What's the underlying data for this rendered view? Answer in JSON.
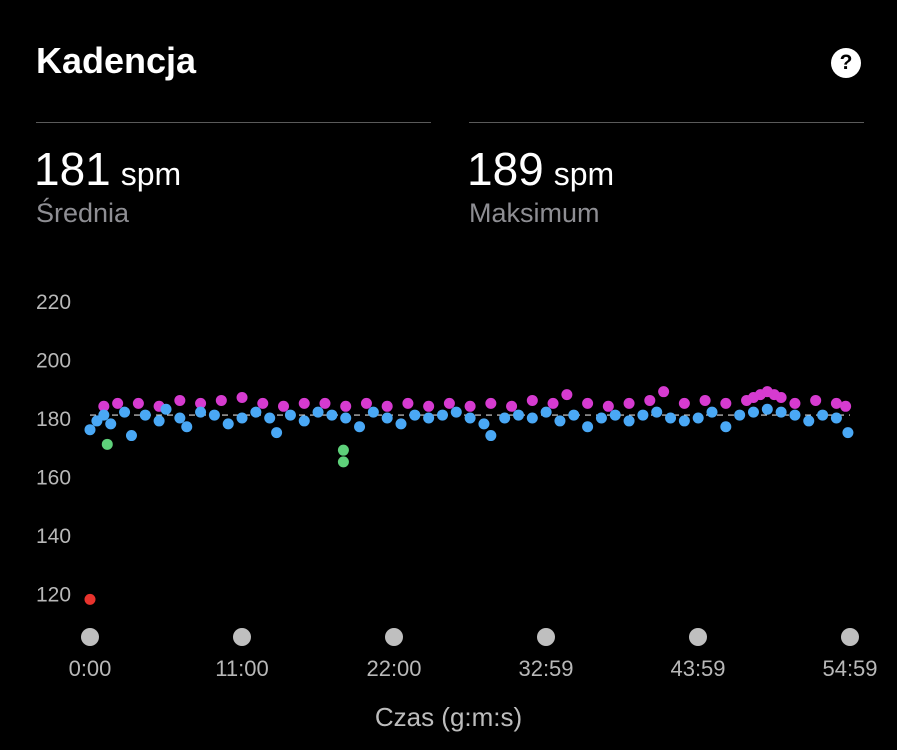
{
  "header": {
    "title": "Kadencja",
    "help_icon": "question-circle-icon"
  },
  "stats": [
    {
      "value": "181",
      "unit": "spm",
      "label": "Średnia"
    },
    {
      "value": "189",
      "unit": "spm",
      "label": "Maksimum"
    }
  ],
  "colors": {
    "background": "#000000",
    "above_avg": "#d63bd0",
    "average": "#4aa8f5",
    "below_avg": "#5ed17a",
    "low": "#e8332d",
    "grid_text": "#b8b8b8",
    "marker": "#bfbfbf"
  },
  "chart_data": {
    "type": "scatter",
    "xlabel": "Czas (g:m:s)",
    "ylabel": "",
    "x_ticks": [
      "0:00",
      "11:00",
      "22:00",
      "32:59",
      "43:59",
      "54:59"
    ],
    "x_range": [
      0,
      3299
    ],
    "y_ticks": [
      120,
      140,
      160,
      180,
      200,
      220
    ],
    "ylim": [
      110,
      225
    ],
    "average_line": 181,
    "series": [
      {
        "color_key": "above_avg",
        "points": [
          [
            60,
            184
          ],
          [
            120,
            185
          ],
          [
            210,
            185
          ],
          [
            300,
            184
          ],
          [
            390,
            186
          ],
          [
            480,
            185
          ],
          [
            570,
            186
          ],
          [
            660,
            187
          ],
          [
            750,
            185
          ],
          [
            840,
            184
          ],
          [
            930,
            185
          ],
          [
            1020,
            185
          ],
          [
            1110,
            184
          ],
          [
            1200,
            185
          ],
          [
            1290,
            184
          ],
          [
            1380,
            185
          ],
          [
            1470,
            184
          ],
          [
            1560,
            185
          ],
          [
            1650,
            184
          ],
          [
            1740,
            185
          ],
          [
            1830,
            184
          ],
          [
            1920,
            186
          ],
          [
            2010,
            185
          ],
          [
            2070,
            188
          ],
          [
            2160,
            185
          ],
          [
            2250,
            184
          ],
          [
            2340,
            185
          ],
          [
            2430,
            186
          ],
          [
            2490,
            189
          ],
          [
            2580,
            185
          ],
          [
            2670,
            186
          ],
          [
            2760,
            185
          ],
          [
            2850,
            186
          ],
          [
            2880,
            187
          ],
          [
            2910,
            188
          ],
          [
            2940,
            189
          ],
          [
            2970,
            188
          ],
          [
            3000,
            187
          ],
          [
            3060,
            185
          ],
          [
            3150,
            186
          ],
          [
            3240,
            185
          ],
          [
            3280,
            184
          ]
        ]
      },
      {
        "color_key": "average",
        "points": [
          [
            0,
            176
          ],
          [
            30,
            179
          ],
          [
            60,
            181
          ],
          [
            90,
            178
          ],
          [
            150,
            182
          ],
          [
            180,
            174
          ],
          [
            240,
            181
          ],
          [
            300,
            179
          ],
          [
            330,
            183
          ],
          [
            390,
            180
          ],
          [
            420,
            177
          ],
          [
            480,
            182
          ],
          [
            540,
            181
          ],
          [
            600,
            178
          ],
          [
            660,
            180
          ],
          [
            720,
            182
          ],
          [
            780,
            180
          ],
          [
            810,
            175
          ],
          [
            870,
            181
          ],
          [
            930,
            179
          ],
          [
            990,
            182
          ],
          [
            1050,
            181
          ],
          [
            1110,
            180
          ],
          [
            1170,
            177
          ],
          [
            1230,
            182
          ],
          [
            1290,
            180
          ],
          [
            1350,
            178
          ],
          [
            1410,
            181
          ],
          [
            1470,
            180
          ],
          [
            1530,
            181
          ],
          [
            1590,
            182
          ],
          [
            1650,
            180
          ],
          [
            1710,
            178
          ],
          [
            1740,
            174
          ],
          [
            1800,
            180
          ],
          [
            1860,
            181
          ],
          [
            1920,
            180
          ],
          [
            1980,
            182
          ],
          [
            2040,
            179
          ],
          [
            2100,
            181
          ],
          [
            2160,
            177
          ],
          [
            2220,
            180
          ],
          [
            2280,
            181
          ],
          [
            2340,
            179
          ],
          [
            2400,
            181
          ],
          [
            2460,
            182
          ],
          [
            2520,
            180
          ],
          [
            2580,
            179
          ],
          [
            2640,
            180
          ],
          [
            2700,
            182
          ],
          [
            2760,
            177
          ],
          [
            2820,
            181
          ],
          [
            2880,
            182
          ],
          [
            2940,
            183
          ],
          [
            3000,
            182
          ],
          [
            3060,
            181
          ],
          [
            3120,
            179
          ],
          [
            3180,
            181
          ],
          [
            3240,
            180
          ],
          [
            3290,
            175
          ]
        ]
      },
      {
        "color_key": "below_avg",
        "points": [
          [
            75,
            171
          ],
          [
            1100,
            169
          ],
          [
            1100,
            165
          ]
        ]
      },
      {
        "color_key": "low",
        "points": [
          [
            0,
            118
          ]
        ]
      }
    ]
  }
}
